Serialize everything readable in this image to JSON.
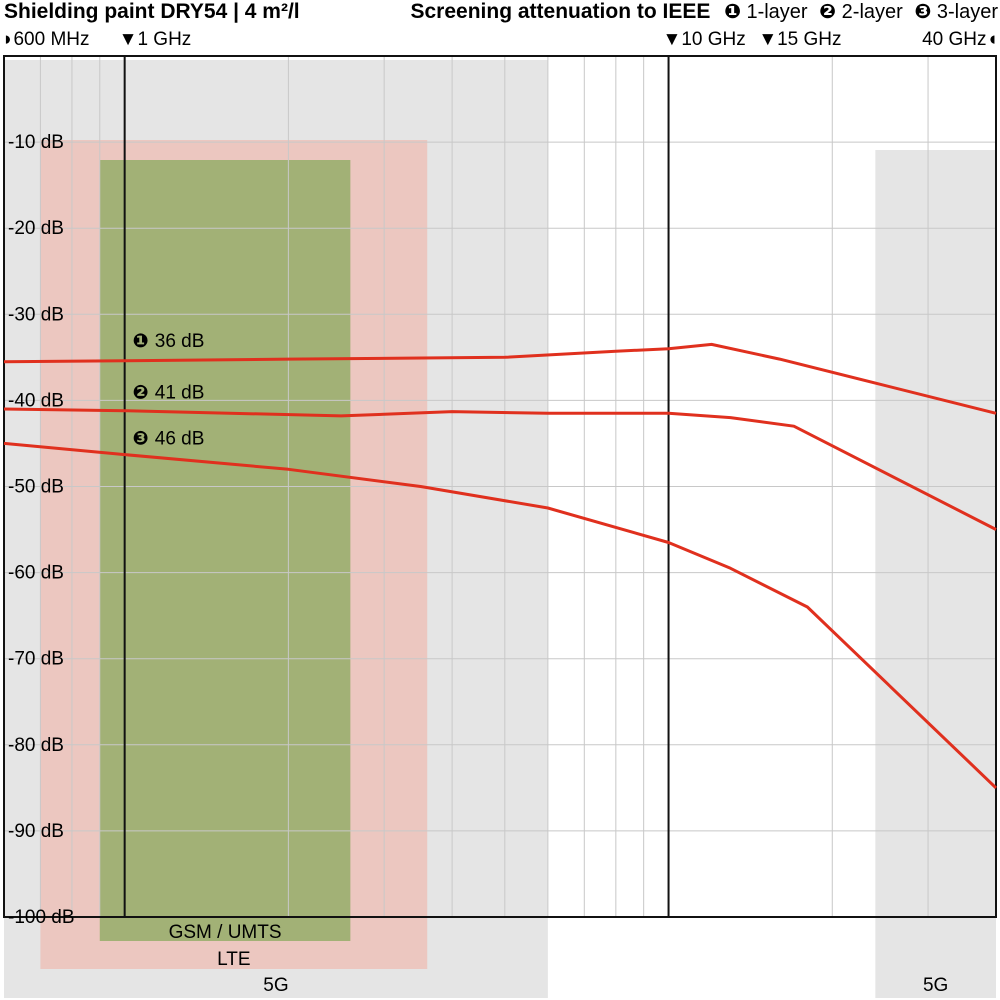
{
  "header": {
    "title": "Shielding paint DRY54 | 4 m²/l",
    "legend_title": "Screening attenuation to IEEE",
    "legend_items": [
      {
        "marker": "❶",
        "label": "1-layer"
      },
      {
        "marker": "❷",
        "label": "2-layer"
      },
      {
        "marker": "❸",
        "label": "3-layer"
      }
    ]
  },
  "chart_data": {
    "type": "line",
    "xscale": "log",
    "xlim_hz": [
      600000000,
      40000000000
    ],
    "ylim_db": [
      -100,
      0
    ],
    "grid": true,
    "x_top_labels": [
      {
        "text": "◗600 MHz",
        "x_hz": 600000000,
        "align": "start"
      },
      {
        "text": "▼1 GHz",
        "x_hz": 1000000000,
        "align": "start"
      },
      {
        "text": "▼10 GHz",
        "x_hz": 10000000000,
        "align": "start"
      },
      {
        "text": "▼15 GHz",
        "x_hz": 15000000000,
        "align": "start"
      },
      {
        "text": "40 GHz◖",
        "x_hz": 40000000000,
        "align": "end"
      }
    ],
    "y_tick_labels": [
      "-10 dB",
      "-20 dB",
      "-30 dB",
      "-40 dB",
      "-50 dB",
      "-60 dB",
      "-70 dB",
      "-80 dB",
      "-90 dB",
      "-100 dB"
    ],
    "y_tick_values": [
      -10,
      -20,
      -30,
      -40,
      -50,
      -60,
      -70,
      -80,
      -90,
      -100
    ],
    "marker_lines_hz": [
      1000000000,
      10000000000
    ],
    "bands": [
      {
        "label": "GSM / UMTS",
        "from_hz": 900000000,
        "to_hz": 2600000000,
        "color": "#8aaa5e",
        "row": 0
      },
      {
        "label": "LTE",
        "from_hz": 700000000,
        "to_hz": 3600000000,
        "color": "#f3a99c",
        "row": 1
      },
      {
        "label": "5G",
        "from_hz": 600000000,
        "to_hz": 6000000000,
        "color": "#d4d4d4",
        "row": 2
      },
      {
        "label": "5G",
        "from_hz": 24000000000,
        "to_hz": 40000000000,
        "color": "#d4d4d4",
        "row": 2
      }
    ],
    "series": [
      {
        "name": "1-layer",
        "marker": "❶",
        "label": "36 dB",
        "label_x_hz": 1000000000,
        "label_db": -34.5,
        "color": "#e0301e",
        "x": [
          600000000,
          1000000000,
          2000000000,
          5000000000,
          8000000000,
          10000000000,
          12000000000,
          16000000000,
          40000000000
        ],
        "y": [
          -35.5,
          -35.4,
          -35.2,
          -35.0,
          -34.3,
          -34.0,
          -33.5,
          -35.2,
          -41.5
        ]
      },
      {
        "name": "2-layer",
        "marker": "❷",
        "label": "41 dB",
        "label_x_hz": 1000000000,
        "label_db": -40.5,
        "color": "#e0301e",
        "x": [
          600000000,
          1000000000,
          2500000000,
          4000000000,
          6000000000,
          10000000000,
          13000000000,
          17000000000,
          40000000000
        ],
        "y": [
          -41.0,
          -41.2,
          -41.8,
          -41.3,
          -41.5,
          -41.5,
          -42.0,
          -43.0,
          -55.0
        ]
      },
      {
        "name": "3-layer",
        "marker": "❸",
        "label": "46 dB",
        "label_x_hz": 1000000000,
        "label_db": -45.8,
        "color": "#e0301e",
        "x": [
          600000000,
          1000000000,
          2000000000,
          3500000000,
          6000000000,
          10000000000,
          13000000000,
          18000000000,
          40000000000
        ],
        "y": [
          -45.0,
          -46.3,
          -48.0,
          -50.0,
          -52.5,
          -56.5,
          -59.5,
          -64.0,
          -85.0
        ]
      }
    ]
  }
}
